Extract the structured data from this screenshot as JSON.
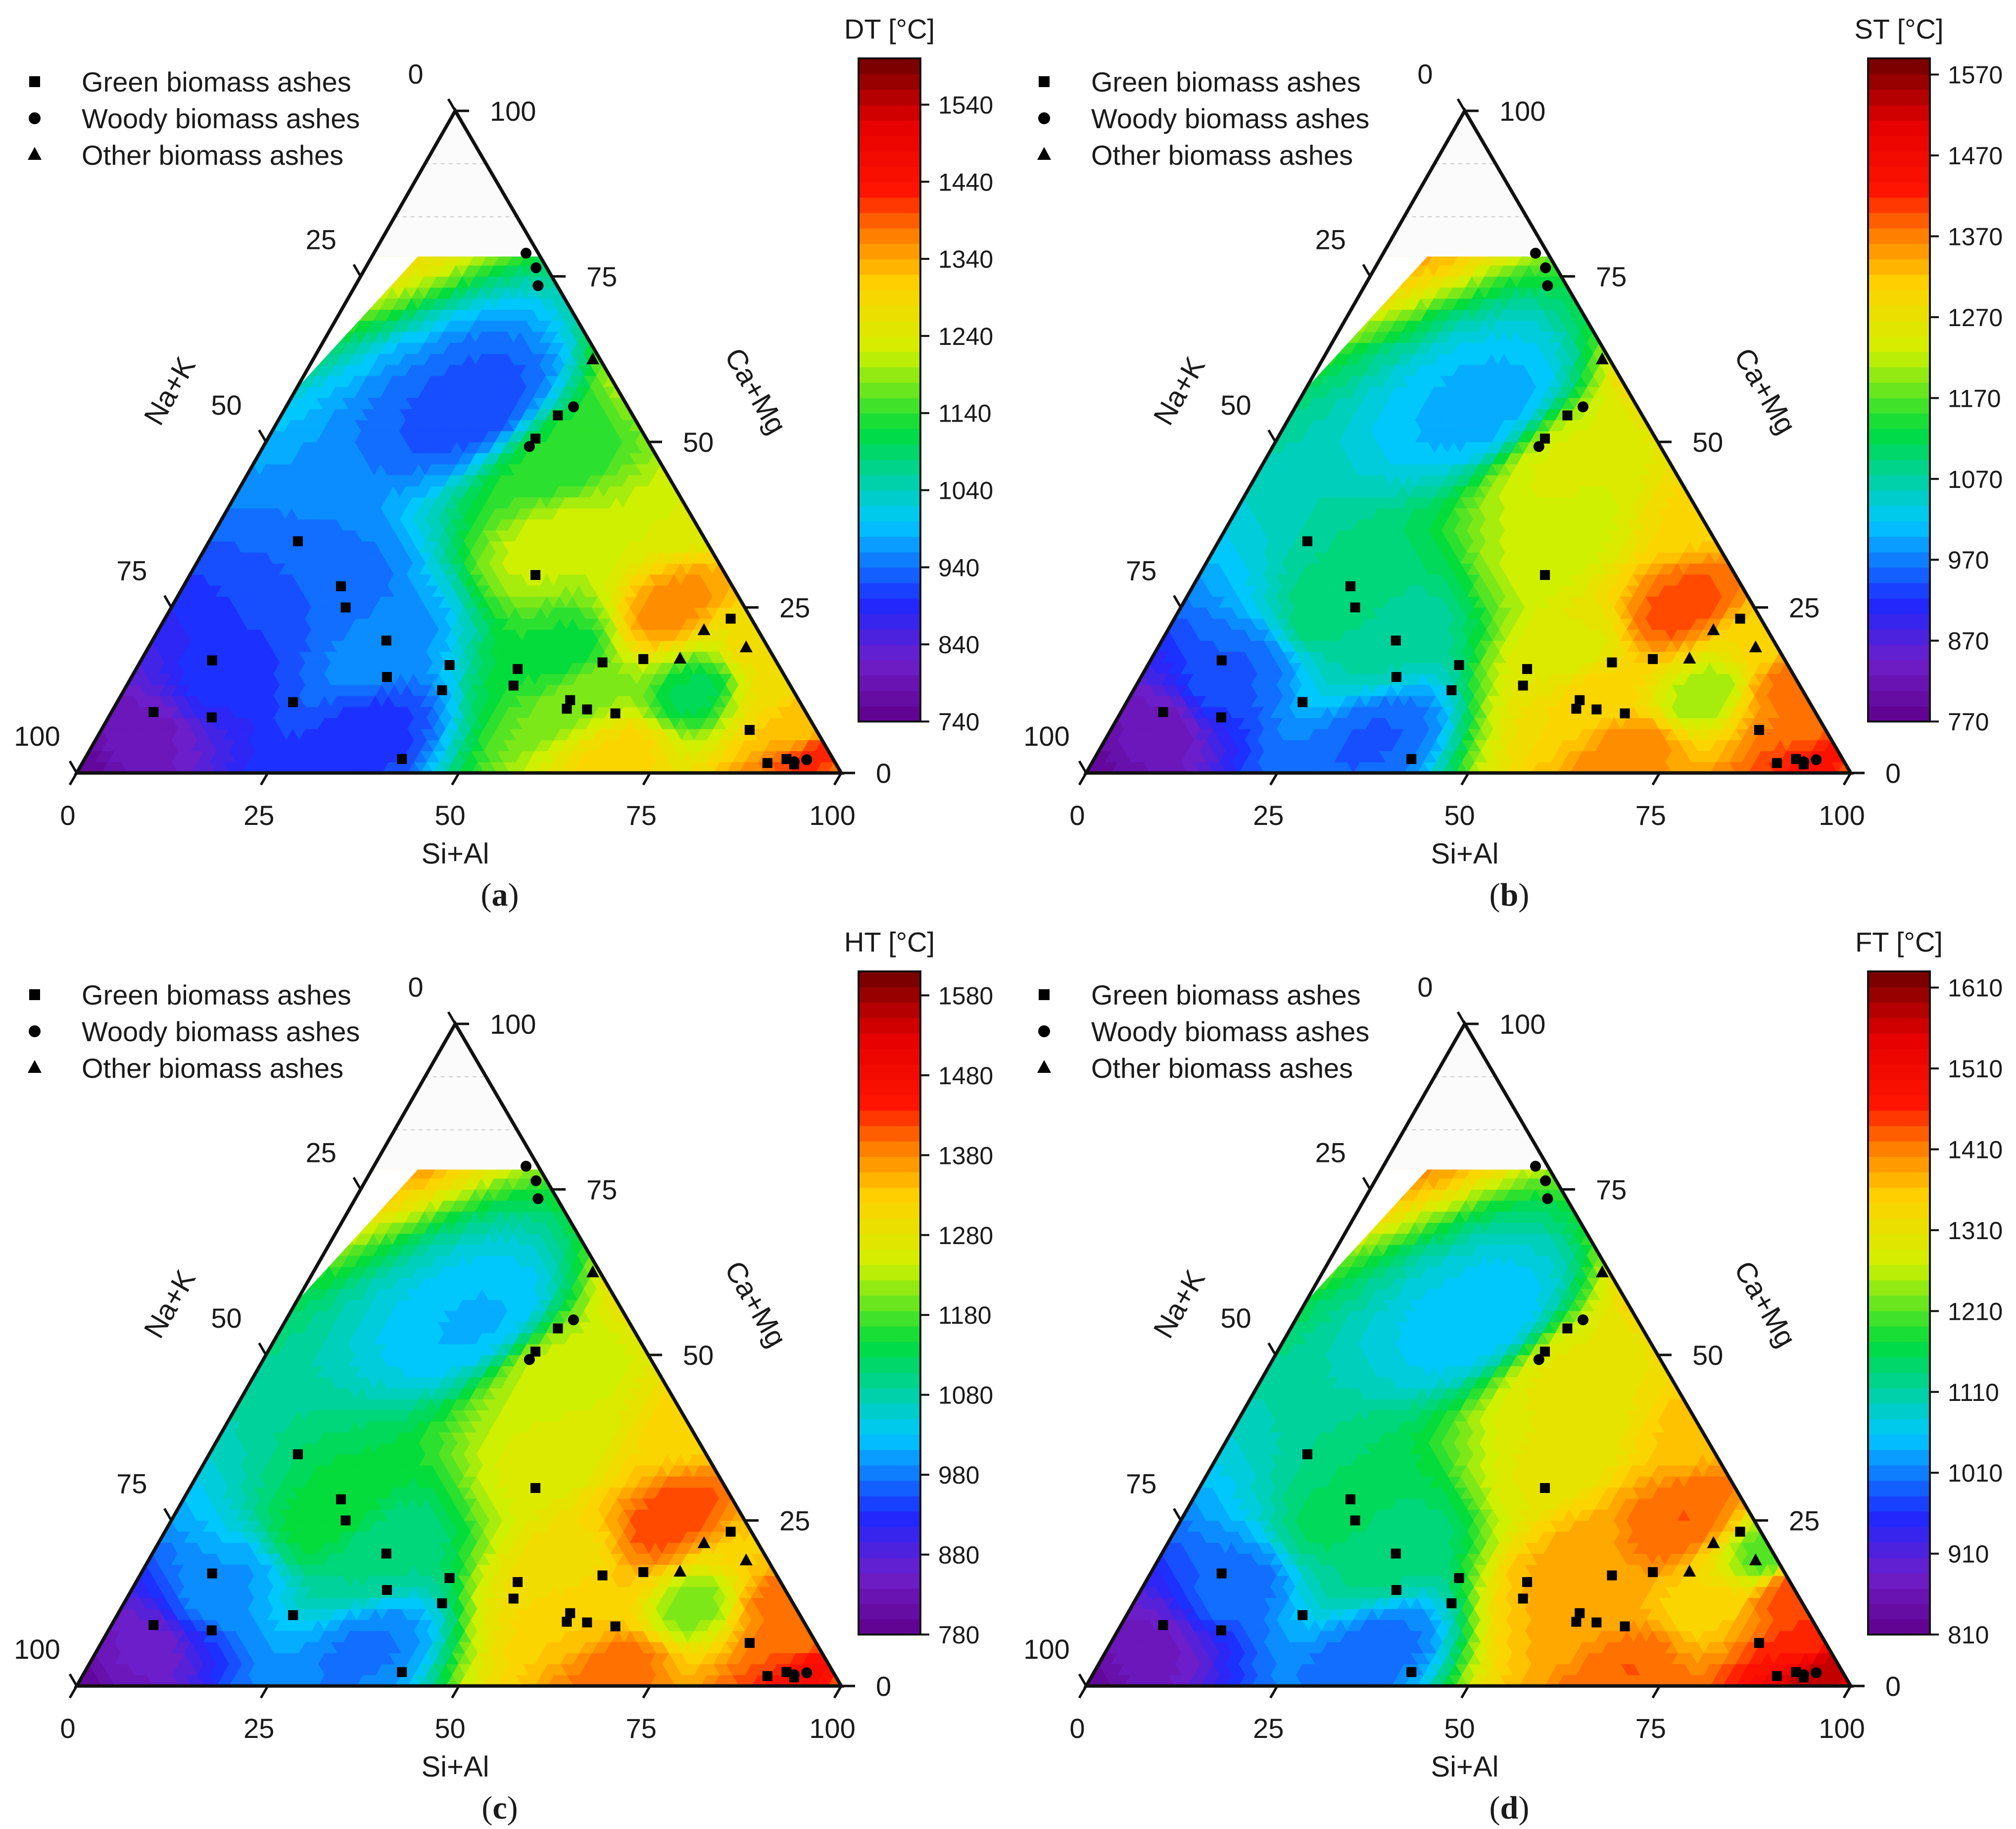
{
  "figure": {
    "vertex_labels": {
      "bottom_axis": "Si+Al",
      "left_axis": "Na+K",
      "right_axis": "Ca+Mg"
    },
    "legend": [
      "Green biomass ashes",
      "Woody biomass ashes",
      "Other biomass ashes"
    ],
    "ticks": {
      "bottom": [
        "0",
        "25",
        "50",
        "75",
        "100"
      ],
      "left": [
        "100",
        "75",
        "50",
        "25",
        "0"
      ],
      "right": [
        "0",
        "25",
        "50",
        "75",
        "100"
      ]
    }
  },
  "chart_data": [
    {
      "type": "ternary contour",
      "panel": "(a)",
      "caption_letter": "a",
      "title": "DT [°C]",
      "axes": {
        "a": "Si+Al",
        "b": "Ca+Mg",
        "c": "Na+K"
      },
      "colorbar": {
        "min": 740,
        "max": 1600,
        "ticks": [
          740,
          840,
          940,
          1040,
          1140,
          1240,
          1340,
          1440,
          1540
        ],
        "tick_labels": [
          "740",
          "840",
          "940",
          "1040",
          "1140",
          "1240",
          "1340",
          "1440",
          "1540"
        ]
      },
      "field_anchors": [
        [
          100,
          0,
          1375
        ],
        [
          0,
          0,
          760
        ],
        [
          0,
          90,
          1300
        ],
        [
          20,
          25,
          930
        ],
        [
          30,
          20,
          960
        ],
        [
          25,
          55,
          920
        ],
        [
          40,
          47,
          1140
        ],
        [
          55,
          18,
          1120
        ],
        [
          50,
          65,
          1320
        ],
        [
          60,
          12,
          1180
        ],
        [
          65,
          25,
          1360
        ],
        [
          75,
          12,
          1100
        ],
        [
          85,
          15,
          1280
        ],
        [
          92,
          8,
          1320
        ],
        [
          80,
          20,
          1290
        ],
        [
          45,
          35,
          1220
        ],
        [
          62,
          40,
          1230
        ],
        [
          35,
          5,
          900
        ],
        [
          12,
          15,
          900
        ],
        [
          5,
          5,
          800
        ],
        [
          70,
          3,
          1300
        ],
        [
          96,
          2,
          1420
        ]
      ]
    },
    {
      "type": "ternary contour",
      "panel": "(b)",
      "caption_letter": "b",
      "title": "ST [°C]",
      "axes": {
        "a": "Si+Al",
        "b": "Ca+Mg",
        "c": "Na+K"
      },
      "colorbar": {
        "min": 770,
        "max": 1590,
        "ticks": [
          770,
          870,
          970,
          1070,
          1170,
          1270,
          1370,
          1470,
          1570
        ],
        "tick_labels": [
          "770",
          "870",
          "970",
          "1070",
          "1170",
          "1270",
          "1370",
          "1470",
          "1570"
        ]
      },
      "field_anchors": [
        [
          100,
          0,
          1400
        ],
        [
          0,
          0,
          790
        ],
        [
          0,
          90,
          1360
        ],
        [
          20,
          25,
          1100
        ],
        [
          30,
          20,
          1070
        ],
        [
          25,
          55,
          1000
        ],
        [
          40,
          47,
          1240
        ],
        [
          55,
          18,
          1250
        ],
        [
          50,
          65,
          1380
        ],
        [
          60,
          12,
          1300
        ],
        [
          65,
          25,
          1400
        ],
        [
          75,
          12,
          1200
        ],
        [
          85,
          15,
          1380
        ],
        [
          92,
          8,
          1380
        ],
        [
          80,
          20,
          1300
        ],
        [
          45,
          35,
          1230
        ],
        [
          62,
          40,
          1300
        ],
        [
          35,
          5,
          950
        ],
        [
          12,
          15,
          950
        ],
        [
          5,
          5,
          820
        ],
        [
          70,
          3,
          1370
        ],
        [
          96,
          2,
          1440
        ]
      ]
    },
    {
      "type": "ternary contour",
      "panel": "(c)",
      "caption_letter": "c",
      "title": "HT [°C]",
      "axes": {
        "a": "Si+Al",
        "b": "Ca+Mg",
        "c": "Na+K"
      },
      "colorbar": {
        "min": 780,
        "max": 1610,
        "ticks": [
          780,
          880,
          980,
          1080,
          1180,
          1280,
          1380,
          1480,
          1580
        ],
        "tick_labels": [
          "780",
          "880",
          "980",
          "1080",
          "1180",
          "1280",
          "1380",
          "1480",
          "1580"
        ]
      },
      "field_anchors": [
        [
          100,
          0,
          1420
        ],
        [
          0,
          0,
          800
        ],
        [
          0,
          90,
          1380
        ],
        [
          20,
          25,
          1150
        ],
        [
          30,
          20,
          1100
        ],
        [
          25,
          55,
          1020
        ],
        [
          40,
          47,
          1240
        ],
        [
          55,
          18,
          1300
        ],
        [
          50,
          65,
          1400
        ],
        [
          60,
          12,
          1330
        ],
        [
          65,
          25,
          1420
        ],
        [
          75,
          12,
          1200
        ],
        [
          85,
          15,
          1400
        ],
        [
          92,
          8,
          1400
        ],
        [
          80,
          20,
          1330
        ],
        [
          45,
          35,
          1260
        ],
        [
          62,
          40,
          1320
        ],
        [
          35,
          5,
          980
        ],
        [
          12,
          15,
          1000
        ],
        [
          5,
          5,
          850
        ],
        [
          70,
          3,
          1400
        ],
        [
          96,
          2,
          1470
        ]
      ]
    },
    {
      "type": "ternary contour",
      "panel": "(d)",
      "caption_letter": "d",
      "title": "FT [°C]",
      "axes": {
        "a": "Si+Al",
        "b": "Ca+Mg",
        "c": "Na+K"
      },
      "colorbar": {
        "min": 810,
        "max": 1630,
        "ticks": [
          810,
          910,
          1010,
          1110,
          1210,
          1310,
          1410,
          1510,
          1610
        ],
        "tick_labels": [
          "810",
          "910",
          "1010",
          "1110",
          "1210",
          "1310",
          "1410",
          "1510",
          "1610"
        ]
      },
      "field_anchors": [
        [
          100,
          0,
          1560
        ],
        [
          0,
          0,
          830
        ],
        [
          0,
          90,
          1420
        ],
        [
          20,
          25,
          1150
        ],
        [
          30,
          20,
          1130
        ],
        [
          25,
          55,
          1050
        ],
        [
          40,
          47,
          1300
        ],
        [
          55,
          18,
          1380
        ],
        [
          50,
          65,
          1430
        ],
        [
          60,
          12,
          1380
        ],
        [
          65,
          25,
          1430
        ],
        [
          75,
          12,
          1340
        ],
        [
          85,
          15,
          1440
        ],
        [
          92,
          8,
          1450
        ],
        [
          80,
          20,
          1200
        ],
        [
          45,
          35,
          1300
        ],
        [
          62,
          40,
          1360
        ],
        [
          35,
          5,
          1000
        ],
        [
          12,
          15,
          1000
        ],
        [
          5,
          5,
          870
        ],
        [
          70,
          3,
          1430
        ],
        [
          96,
          2,
          1580
        ]
      ]
    }
  ],
  "samples": [
    {
      "group": "green",
      "siAl": 41.5,
      "caMg": 2.1
    },
    {
      "group": "green",
      "siAl": 5.5,
      "caMg": 9.2
    },
    {
      "group": "green",
      "siAl": 9.3,
      "caMg": 17.0
    },
    {
      "group": "green",
      "siAl": 11.6,
      "caMg": 35.0
    },
    {
      "group": "green",
      "siAl": 13.5,
      "caMg": 8.4
    },
    {
      "group": "green",
      "siAl": 20.6,
      "caMg": 28.2
    },
    {
      "group": "green",
      "siAl": 22.8,
      "caMg": 25.0
    },
    {
      "group": "green",
      "siAl": 23.0,
      "caMg": 10.7
    },
    {
      "group": "green",
      "siAl": 30.6,
      "caMg": 20.0
    },
    {
      "group": "green",
      "siAl": 33.4,
      "caMg": 14.5
    },
    {
      "group": "green",
      "siAl": 41.6,
      "caMg": 12.5
    },
    {
      "group": "green",
      "siAl": 40.7,
      "caMg": 16.3
    },
    {
      "group": "green",
      "siAl": 35.0,
      "caMg": 50.5
    },
    {
      "group": "green",
      "siAl": 36.2,
      "caMg": 54.0
    },
    {
      "group": "green",
      "siAl": 45.2,
      "caMg": 29.9
    },
    {
      "group": "green",
      "siAl": 50.6,
      "caMg": 13.2
    },
    {
      "group": "green",
      "siAl": 49.9,
      "caMg": 15.7
    },
    {
      "group": "green",
      "siAl": 59.3,
      "caMg": 9.7
    },
    {
      "group": "green",
      "siAl": 59.1,
      "caMg": 11.0
    },
    {
      "group": "green",
      "siAl": 60.5,
      "caMg": 16.7
    },
    {
      "group": "green",
      "siAl": 62.0,
      "caMg": 9.6
    },
    {
      "group": "green",
      "siAl": 66.0,
      "caMg": 9.0
    },
    {
      "group": "green",
      "siAl": 65.6,
      "caMg": 17.2
    },
    {
      "group": "green",
      "siAl": 74.0,
      "caMg": 23.3
    },
    {
      "group": "green",
      "siAl": 84.8,
      "caMg": 6.5
    },
    {
      "group": "green",
      "siAl": 89.6,
      "caMg": 1.5
    },
    {
      "group": "green",
      "siAl": 91.8,
      "caMg": 2.1
    },
    {
      "group": "green",
      "siAl": 93.2,
      "caMg": 1.3
    },
    {
      "group": "woody",
      "siAl": 19.9,
      "caMg": 78.5
    },
    {
      "group": "woody",
      "siAl": 37.6,
      "caMg": 55.3
    },
    {
      "group": "woody",
      "siAl": 34.8,
      "caMg": 49.3
    },
    {
      "group": "woody",
      "siAl": 23.9,
      "caMg": 73.6
    },
    {
      "group": "woody",
      "siAl": 22.3,
      "caMg": 76.3
    },
    {
      "group": "woody",
      "siAl": 93.0,
      "caMg": 1.7
    },
    {
      "group": "woody",
      "siAl": 94.5,
      "caMg": 2.0
    },
    {
      "group": "other",
      "siAl": 36.6,
      "caMg": 62.4
    },
    {
      "group": "other",
      "siAl": 71.4,
      "caMg": 21.5
    },
    {
      "group": "other",
      "siAl": 70.4,
      "caMg": 17.2
    },
    {
      "group": "other",
      "siAl": 78.2,
      "caMg": 18.9
    }
  ]
}
